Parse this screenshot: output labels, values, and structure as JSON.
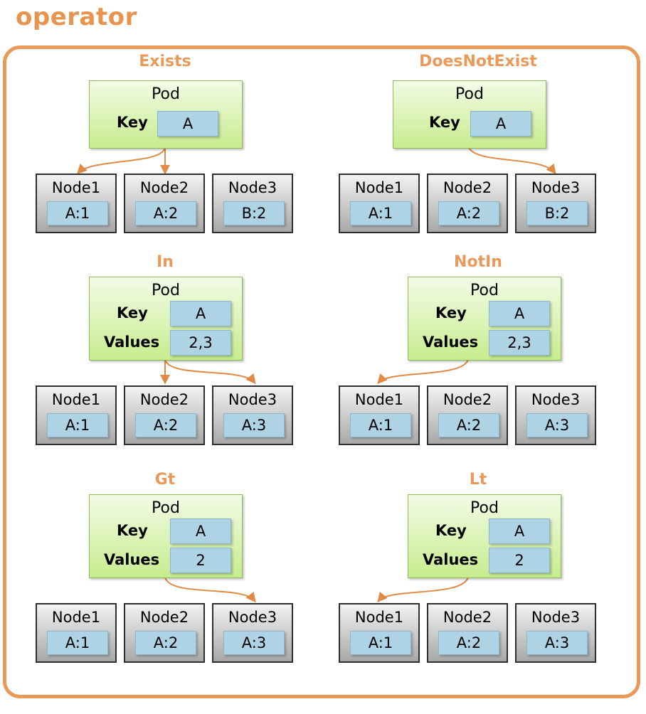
{
  "title": "operator",
  "colors": {
    "accent": "#ea9a58",
    "arrow": "#e08a45"
  },
  "pod_title": "Pod",
  "key_label": "Key",
  "values_label": "Values",
  "panels": [
    {
      "name": "Exists",
      "key": "A",
      "nodes": [
        {
          "name": "Node1",
          "label": "A:1"
        },
        {
          "name": "Node2",
          "label": "A:2"
        },
        {
          "name": "Node3",
          "label": "B:2"
        }
      ]
    },
    {
      "name": "DoesNotExist",
      "key": "A",
      "nodes": [
        {
          "name": "Node1",
          "label": "A:1"
        },
        {
          "name": "Node2",
          "label": "A:2"
        },
        {
          "name": "Node3",
          "label": "B:2"
        }
      ]
    },
    {
      "name": "In",
      "key": "A",
      "values": "2,3",
      "nodes": [
        {
          "name": "Node1",
          "label": "A:1"
        },
        {
          "name": "Node2",
          "label": "A:2"
        },
        {
          "name": "Node3",
          "label": "A:3"
        }
      ]
    },
    {
      "name": "NotIn",
      "key": "A",
      "values": "2,3",
      "nodes": [
        {
          "name": "Node1",
          "label": "A:1"
        },
        {
          "name": "Node2",
          "label": "A:2"
        },
        {
          "name": "Node3",
          "label": "A:3"
        }
      ]
    },
    {
      "name": "Gt",
      "key": "A",
      "values": "2",
      "nodes": [
        {
          "name": "Node1",
          "label": "A:1"
        },
        {
          "name": "Node2",
          "label": "A:2"
        },
        {
          "name": "Node3",
          "label": "A:3"
        }
      ]
    },
    {
      "name": "Lt",
      "key": "A",
      "values": "2",
      "nodes": [
        {
          "name": "Node1",
          "label": "A:1"
        },
        {
          "name": "Node2",
          "label": "A:2"
        },
        {
          "name": "Node3",
          "label": "A:3"
        }
      ]
    }
  ]
}
